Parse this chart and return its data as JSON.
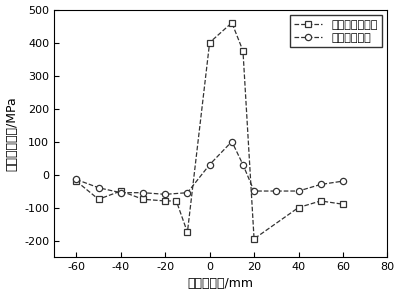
{
  "series1_label": "原始常规焊接件",
  "series2_label": "超声冲击处理",
  "series1_x": [
    -60,
    -50,
    -40,
    -30,
    -20,
    -15,
    -10,
    0,
    10,
    15,
    20,
    40,
    50,
    60
  ],
  "series1_y": [
    -20,
    -75,
    -50,
    -75,
    -80,
    -80,
    -175,
    400,
    460,
    375,
    -195,
    -100,
    -80,
    -90
  ],
  "series2_x": [
    -60,
    -50,
    -40,
    -30,
    -20,
    -10,
    0,
    10,
    15,
    20,
    30,
    40,
    50,
    60
  ],
  "series2_y": [
    -15,
    -40,
    -55,
    -55,
    -60,
    -55,
    30,
    100,
    30,
    -50,
    -50,
    -50,
    -30,
    -20
  ],
  "xlabel": "距中心距离/mm",
  "ylabel": "纵向残余应力/MPa",
  "xlim": [
    -70,
    80
  ],
  "ylim": [
    -250,
    500
  ],
  "xticks": [
    -60,
    -40,
    -20,
    0,
    20,
    40,
    60,
    80
  ],
  "yticks": [
    -200,
    -100,
    0,
    100,
    200,
    300,
    400,
    500
  ],
  "line_color": "#333333",
  "marker1": "s",
  "marker2": "o",
  "figsize": [
    4.0,
    2.96
  ],
  "dpi": 100,
  "legend_loc": "upper right"
}
